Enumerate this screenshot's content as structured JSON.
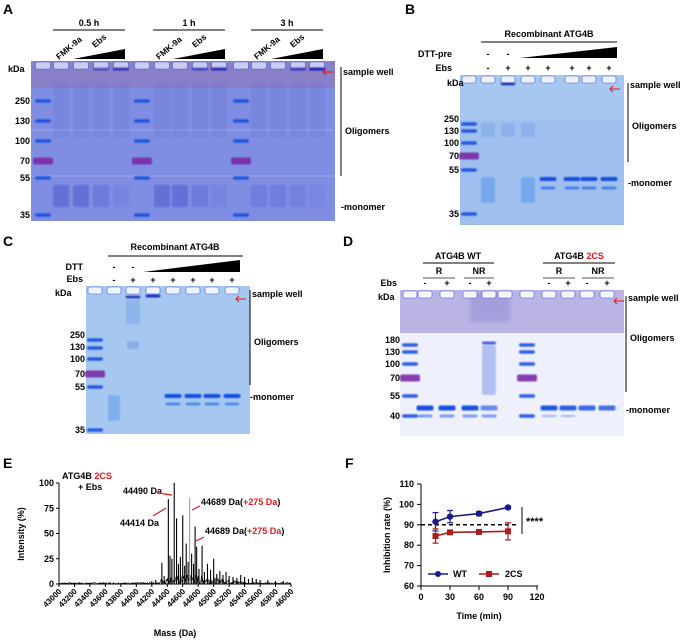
{
  "panel_A": {
    "label": "A",
    "timepoints": [
      "0.5 h",
      "1 h",
      "3 h"
    ],
    "lane_labels": [
      "FMK-9a",
      "Ebs"
    ],
    "kda": "kDa",
    "markers": [
      "250",
      "130",
      "100",
      "70",
      "55",
      "35"
    ],
    "sample_well": "sample well",
    "oligomers": "Oligomers",
    "monomer": "-monomer"
  },
  "panel_B": {
    "label": "B",
    "title": "Recombinant ATG4B",
    "row1_label": "DTT-pre",
    "row1": [
      "-",
      "-"
    ],
    "row2_label": "Ebs",
    "row2": [
      "-",
      "+",
      "+",
      "+",
      "+",
      "+",
      "+"
    ],
    "kda": "kDa",
    "markers": [
      "250",
      "130",
      "100",
      "70",
      "55",
      "35"
    ],
    "sample_well": "sample well",
    "oligomers": "Oligomers",
    "monomer": "-monomer"
  },
  "panel_C": {
    "label": "C",
    "title": "Recombinant ATG4B",
    "row1_label": "DTT",
    "row1": [
      "-",
      "-"
    ],
    "row2_label": "Ebs",
    "row2": [
      "-",
      "+",
      "+",
      "+",
      "+",
      "+",
      "+"
    ],
    "kda": "kDa",
    "markers": [
      "250",
      "130",
      "100",
      "70",
      "55",
      "35"
    ],
    "sample_well": "sample well",
    "oligomers": "Oligomers",
    "monomer": "-monomer"
  },
  "panel_D": {
    "label": "D",
    "group1": "ATG4B WT",
    "group2_prefix": "ATG4B",
    "group2_highlight": "2CS",
    "sub": [
      "R",
      "NR",
      "R",
      "NR"
    ],
    "row_label": "Ebs",
    "row": [
      "-",
      "+",
      "-",
      "+",
      "-",
      "+",
      "-",
      "+"
    ],
    "kda": "kDa",
    "markers": [
      "180",
      "130",
      "100",
      "70",
      "55",
      "40"
    ],
    "sample_well": "sample well",
    "oligomers": "Oligomers",
    "monomer": "-monomer"
  },
  "colors": {
    "highlight": "#e8151b",
    "wt": "#1a1a8c",
    "mut": "#b01c1c",
    "arrow": "#e8151b"
  },
  "chart_data": [
    {
      "panel": "E",
      "label": "E",
      "type": "line",
      "title_line1_prefix": "ATG4B",
      "title_line1_highlight": "2CS",
      "title_line2": "+ Ebs",
      "xlabel": "Mass (Da)",
      "ylabel": "Intensity (%)",
      "xlim": [
        43000,
        46000
      ],
      "ylim": [
        0,
        100
      ],
      "xticks": [
        43000,
        43200,
        43400,
        43600,
        43800,
        44000,
        44200,
        44400,
        44600,
        44800,
        45000,
        45200,
        45400,
        45600,
        45800,
        46000
      ],
      "yticks": [
        0,
        25,
        50,
        75,
        100
      ],
      "peaks": [
        [
          44330,
          21
        ],
        [
          44360,
          8
        ],
        [
          44414,
          84
        ],
        [
          44435,
          28
        ],
        [
          44460,
          25
        ],
        [
          44490,
          100
        ],
        [
          44520,
          65
        ],
        [
          44545,
          20
        ],
        [
          44570,
          27
        ],
        [
          44600,
          68
        ],
        [
          44625,
          18
        ],
        [
          44645,
          40
        ],
        [
          44670,
          22
        ],
        [
          44689,
          85
        ],
        [
          44715,
          30
        ],
        [
          44740,
          20
        ],
        [
          44760,
          57
        ],
        [
          44780,
          37
        ],
        [
          44810,
          15
        ],
        [
          44850,
          38
        ],
        [
          44880,
          12
        ],
        [
          44920,
          20
        ],
        [
          44960,
          14
        ],
        [
          45000,
          25
        ],
        [
          45040,
          10
        ],
        [
          45080,
          13
        ],
        [
          45120,
          9
        ],
        [
          45160,
          12
        ],
        [
          45200,
          8
        ],
        [
          45250,
          7
        ],
        [
          45300,
          6
        ],
        [
          45350,
          9
        ],
        [
          45400,
          7
        ],
        [
          45450,
          5
        ],
        [
          45500,
          6
        ],
        [
          45550,
          5
        ],
        [
          45600,
          4
        ],
        [
          45700,
          4
        ],
        [
          45800,
          3
        ],
        [
          45900,
          3
        ],
        [
          44250,
          4
        ],
        [
          44200,
          3
        ]
      ],
      "annotations": [
        {
          "text": "44490 Da",
          "mass": 44490
        },
        {
          "text": "44414 Da",
          "mass": 44414
        },
        {
          "text": "44689 Da(",
          "shift": "+275 Da",
          "close": ")",
          "mass": 44689
        },
        {
          "text": "44689 Da(",
          "shift": "+275 Da",
          "close": ")",
          "mass": 44760
        }
      ]
    },
    {
      "panel": "F",
      "label": "F",
      "type": "line",
      "xlabel": "Time (min)",
      "ylabel": "Inhibition rate (%)",
      "xlim": [
        0,
        120
      ],
      "ylim": [
        60,
        110
      ],
      "xticks": [
        0,
        30,
        60,
        90,
        120
      ],
      "yticks": [
        60,
        70,
        80,
        90,
        100,
        110
      ],
      "reference_line": 90,
      "significance": "****",
      "legend_position": "bottom-left",
      "series": [
        {
          "name": "WT",
          "marker": "circle",
          "x": [
            15,
            30,
            60,
            90
          ],
          "y": [
            91.5,
            94,
            95.5,
            98.5
          ],
          "err": [
            4.5,
            3,
            1,
            0.5
          ]
        },
        {
          "name": "2CS",
          "marker": "square",
          "x": [
            15,
            30,
            60,
            90
          ],
          "y": [
            84.5,
            86.3,
            86.5,
            86.8
          ],
          "err": [
            3.5,
            0.7,
            0.5,
            4.2
          ]
        }
      ]
    }
  ]
}
